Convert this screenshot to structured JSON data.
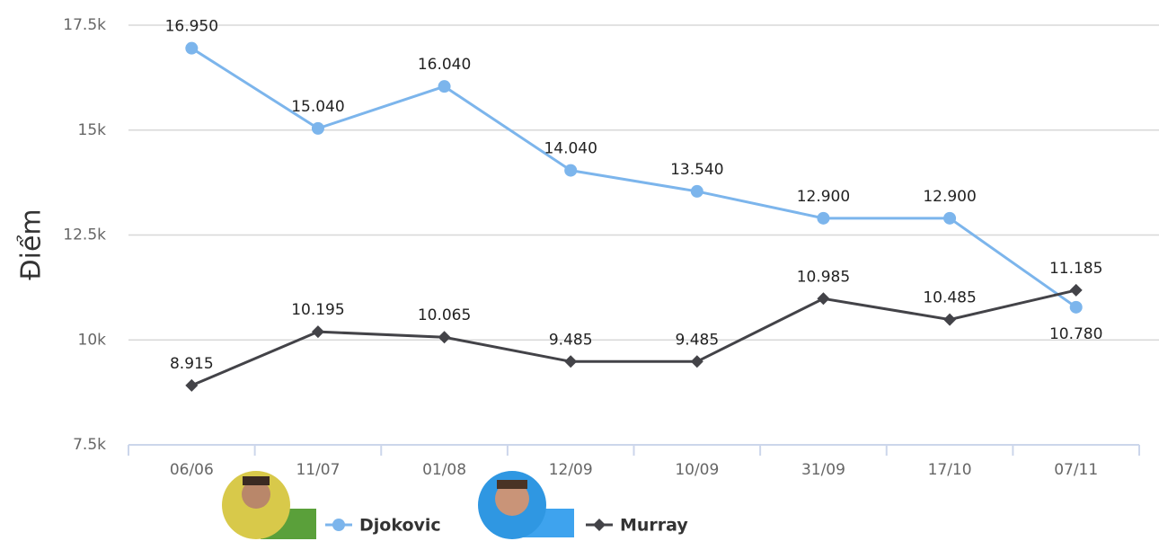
{
  "chart_data": {
    "type": "line",
    "y_axis_title": "Điểm",
    "categories": [
      "06/06",
      "11/07",
      "01/08",
      "12/09",
      "10/09",
      "31/09",
      "17/10",
      "07/11"
    ],
    "series": [
      {
        "name": "Djokovic",
        "color": "#7cb5ec",
        "marker": "circle",
        "values": [
          16950,
          15040,
          16040,
          14040,
          13540,
          12900,
          12900,
          10780
        ],
        "value_labels": [
          "16.950",
          "15.040",
          "16.040",
          "14.040",
          "13.540",
          "12.900",
          "12.900",
          "10.780"
        ]
      },
      {
        "name": "Murray",
        "color": "#434348",
        "marker": "diamond",
        "values": [
          8915,
          10195,
          10065,
          9485,
          9485,
          10985,
          10485,
          11185
        ],
        "value_labels": [
          "8.915",
          "10.195",
          "10.065",
          "9.485",
          "9.485",
          "10.985",
          "10.485",
          "11.185"
        ]
      }
    ],
    "ylim": [
      7500,
      17500
    ],
    "yticks": [
      {
        "value": 7500,
        "label": "7.5k"
      },
      {
        "value": 10000,
        "label": "10k"
      },
      {
        "value": 12500,
        "label": "12.5k"
      },
      {
        "value": 15000,
        "label": "15k"
      },
      {
        "value": 17500,
        "label": "17.5k"
      }
    ],
    "grid": true
  }
}
